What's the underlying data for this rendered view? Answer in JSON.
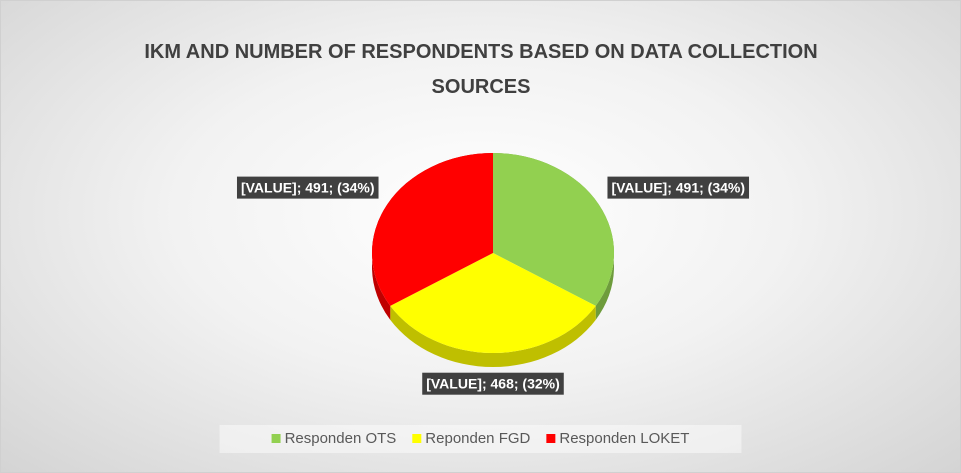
{
  "chart_data": {
    "type": "pie",
    "title": "IKM AND NUMBER OF RESPONDENTS BASED ON DATA COLLECTION SOURCES",
    "categories": [
      "Responden OTS",
      "Reponden FGD",
      "Responden LOKET"
    ],
    "values": [
      491,
      468,
      491
    ],
    "value_labels": [
      "[VALUE]; 491; (34%)",
      "[VALUE]; 468; (32%)",
      "[VALUE]; 491; (34%)"
    ],
    "colors": [
      "#92d050",
      "#ffff00",
      "#ff0000"
    ],
    "legend": "bottom"
  }
}
